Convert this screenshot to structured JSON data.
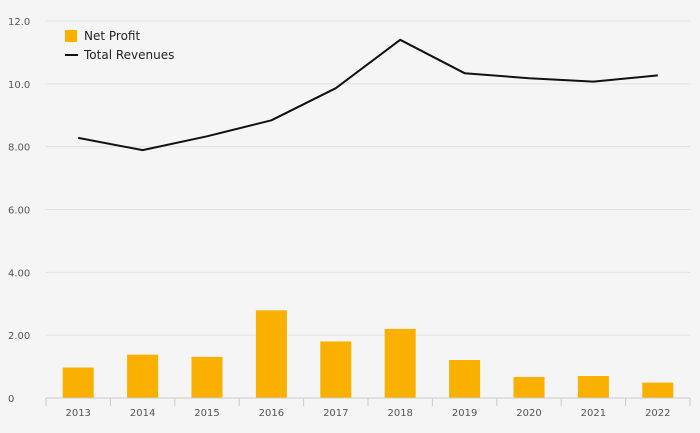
{
  "colors": {
    "background": "#f5f5f5",
    "net_profit": "#f9b000",
    "total_revenues": "#111111",
    "grid": "#e2e2e2",
    "axis": "#cccccc"
  },
  "chart_data": {
    "type": "bar",
    "categories": [
      "2013",
      "2014",
      "2015",
      "2016",
      "2017",
      "2018",
      "2019",
      "2020",
      "2021",
      "2022"
    ],
    "series": [
      {
        "name": "Net Profit",
        "type": "bar",
        "values": [
          0.97,
          1.38,
          1.31,
          2.79,
          1.8,
          2.2,
          1.21,
          0.67,
          0.7,
          0.49
        ]
      },
      {
        "name": "Total Revenues",
        "type": "line",
        "values": [
          8.28,
          7.89,
          8.33,
          8.84,
          9.86,
          11.4,
          10.34,
          10.18,
          10.07,
          10.27
        ]
      }
    ],
    "y_ticks": [
      "0",
      "2.00",
      "4.00",
      "6.00",
      "8.00",
      "10.0",
      "12.0"
    ],
    "ylim": [
      0,
      12
    ],
    "grid": true,
    "legend_position": "top-left",
    "title": "",
    "xlabel": "",
    "ylabel": ""
  }
}
